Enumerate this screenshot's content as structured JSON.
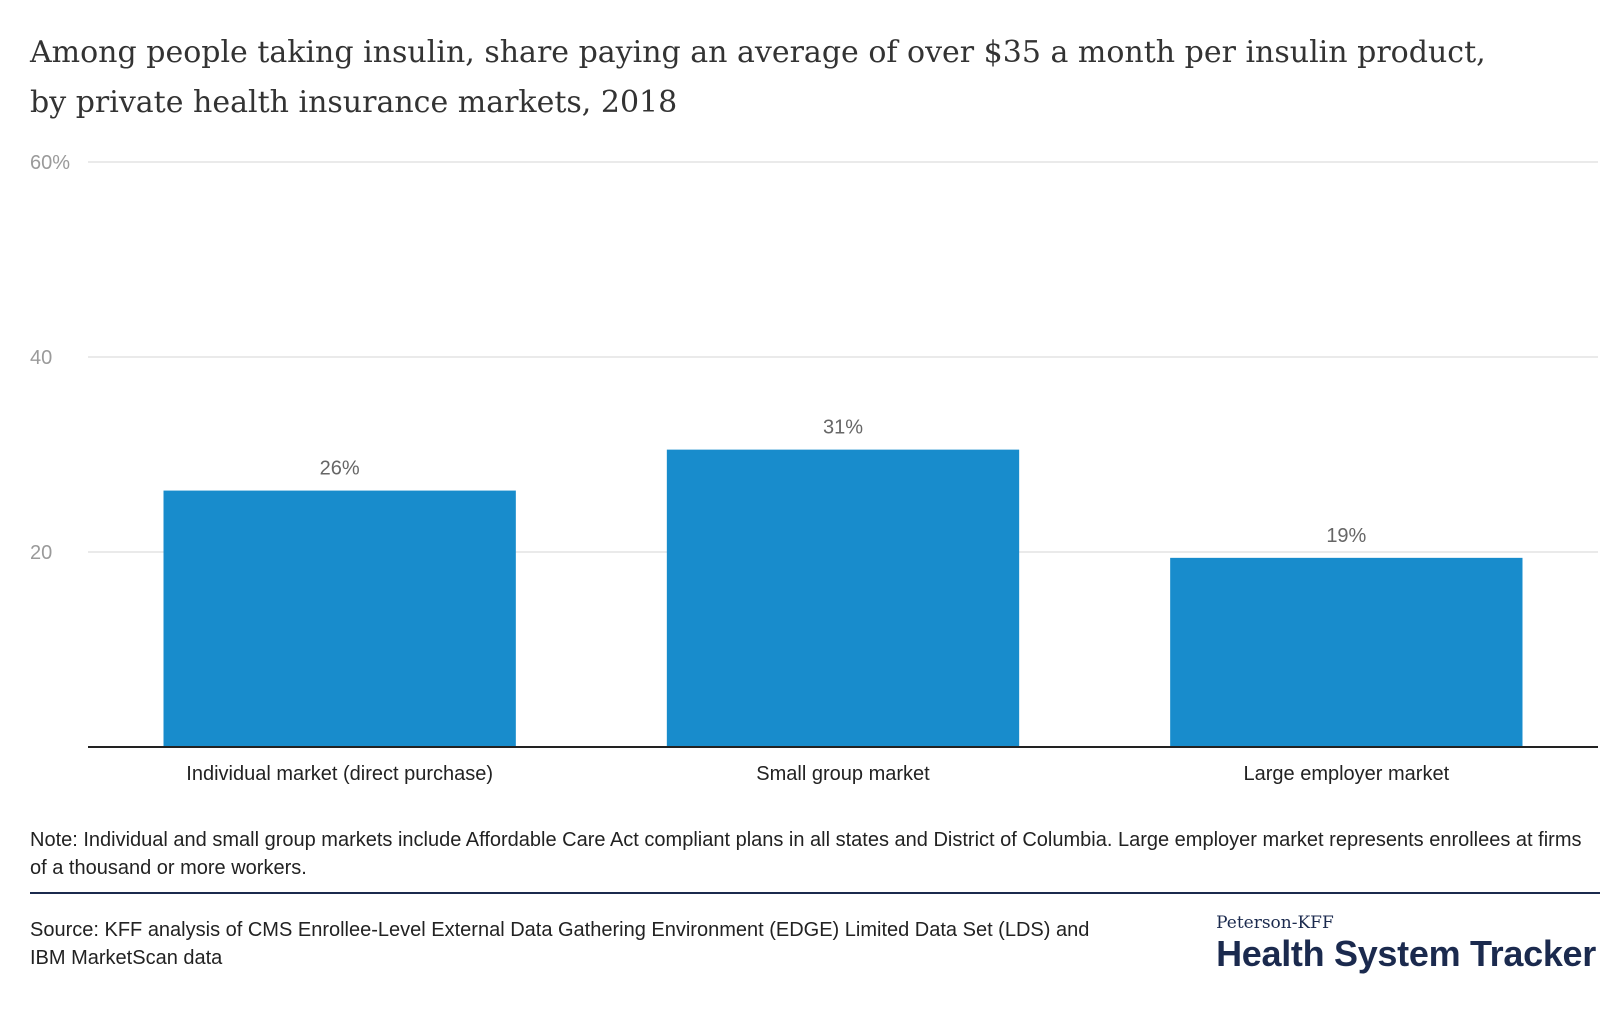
{
  "title_lines": [
    "Among people taking insulin, share paying an average of over $35 a month per insulin product,",
    "by private health insurance markets, 2018"
  ],
  "note": "Note: Individual and small group markets include Affordable Care Act compliant plans in all states and District of Columbia. Large employer market represents enrollees at firms of a thousand or more workers.",
  "source": "Source: KFF analysis of CMS Enrollee-Level External Data Gathering Environment (EDGE) Limited Data Set (LDS) and IBM MarketScan data",
  "brand": {
    "top": "Peterson-KFF",
    "main": "Health System Tracker"
  },
  "colors": {
    "bar": "#188ccc",
    "grid": "#e3e3e3",
    "axis": "#222222",
    "tick_text": "#9a9a9a",
    "label_text": "#666666",
    "brand": "#1b2a4e"
  },
  "chart_data": {
    "type": "bar",
    "categories": [
      "Individual market (direct purchase)",
      "Small group market",
      "Large employer market"
    ],
    "values": [
      26.3,
      30.5,
      19.4
    ],
    "data_labels": [
      "26%",
      "31%",
      "19%"
    ],
    "ylim": [
      0,
      60
    ],
    "yticks": [
      20,
      40,
      60
    ],
    "ytick_labels": [
      "20",
      "40",
      "60%"
    ],
    "grid": true,
    "xlabel": "",
    "ylabel": ""
  }
}
